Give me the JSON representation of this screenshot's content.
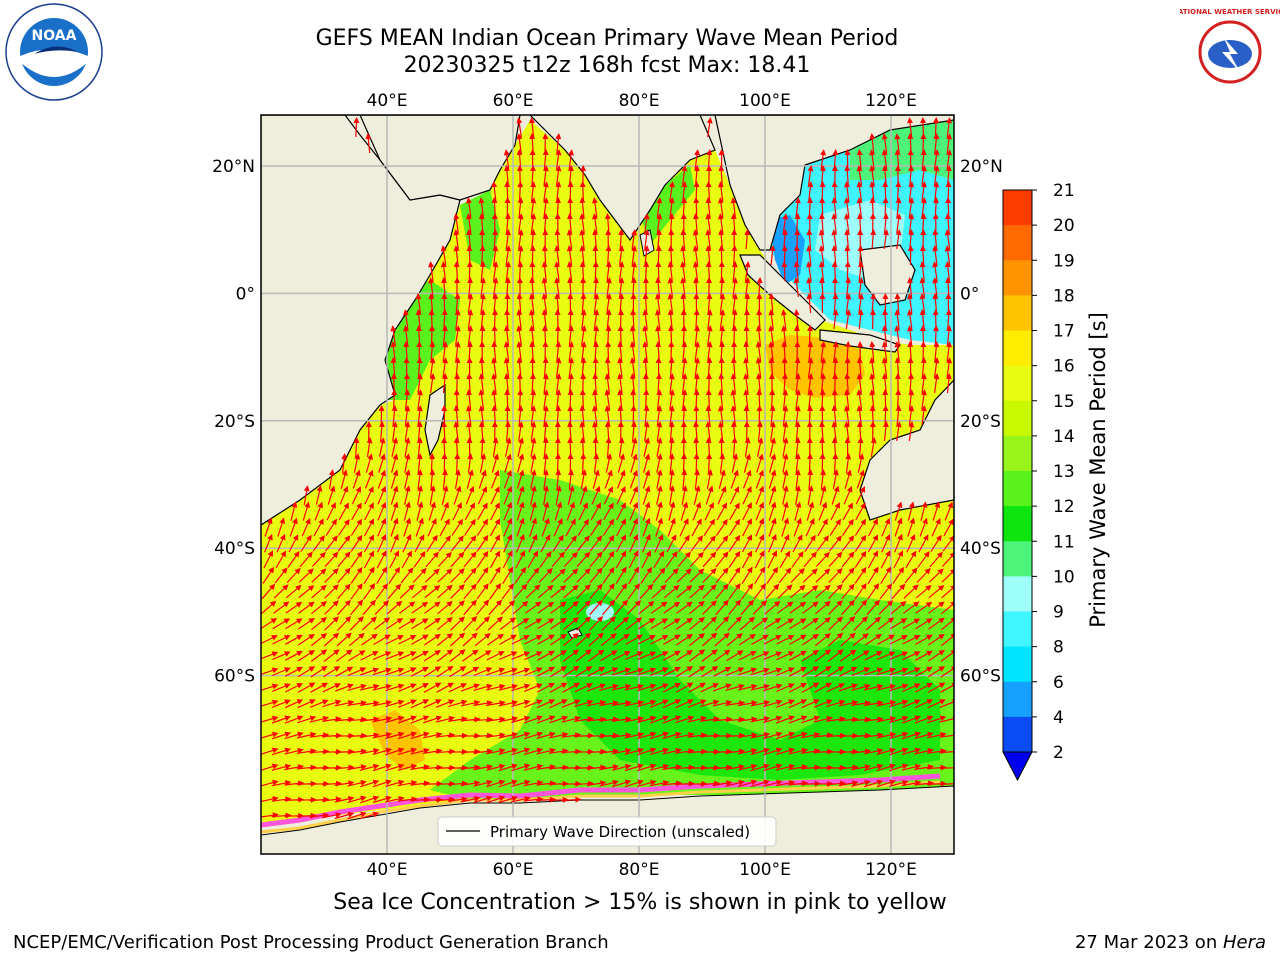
{
  "title": {
    "line1": "GEFS MEAN Indian Ocean Primary Wave Mean Period",
    "line2": "20230325 t12z 168h fcst   Max: 18.41"
  },
  "axes": {
    "lon_ticks": [
      "40°E",
      "60°E",
      "80°E",
      "100°E",
      "120°E"
    ],
    "lat_ticks": [
      "20°N",
      "0°",
      "20°S",
      "40°S",
      "60°S"
    ],
    "lon_values": [
      40,
      60,
      80,
      100,
      120
    ],
    "lat_values": [
      20,
      0,
      -20,
      -40,
      -60
    ],
    "lon_range": [
      20,
      130
    ],
    "lat_range": [
      28,
      -88
    ]
  },
  "colorbar": {
    "label": "Primary Wave Mean Period [s]",
    "ticks": [
      "2",
      "4",
      "6",
      "8",
      "9",
      "10",
      "11",
      "12",
      "13",
      "14",
      "15",
      "16",
      "17",
      "18",
      "19",
      "20",
      "21"
    ],
    "colors": [
      "#0a4bf5",
      "#16a0ff",
      "#00e5ff",
      "#3ff5ff",
      "#9ffffa",
      "#4cf57a",
      "#0ee40e",
      "#5af21c",
      "#98f51c",
      "#c8f900",
      "#e8fb10",
      "#ffec00",
      "#ffc400",
      "#ff9400",
      "#ff6a00",
      "#ff3c00"
    ],
    "extend": "min"
  },
  "legend": {
    "label": "Primary Wave Direction (unscaled)"
  },
  "note": "Sea Ice Concentration > 15% is shown in pink to yellow",
  "footer": {
    "org": "NCEP/EMC/Verification Post Processing Product Generation Branch",
    "date": "27 Mar 2023 on ",
    "host": "Hera"
  },
  "logos": {
    "left": "noaa-logo",
    "right": "nws-logo",
    "left_text": "NOAA",
    "right_text": "NATIONAL WEATHER SERVICE"
  },
  "colors": {
    "land": "#efeedd",
    "arrow": "#ff0000",
    "grid": "#b8b8b8"
  }
}
